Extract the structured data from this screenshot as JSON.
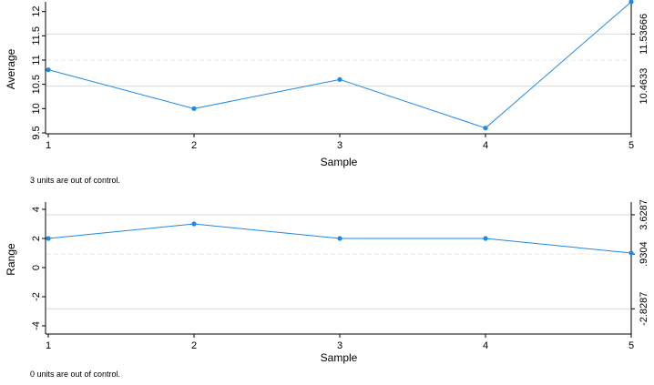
{
  "chart_data": [
    {
      "type": "line",
      "ylabel": "Average",
      "xlabel": "Sample",
      "x": [
        1,
        2,
        3,
        4,
        5
      ],
      "values": [
        10.8,
        10.0,
        10.6,
        9.6,
        12.2
      ],
      "xlim": [
        1,
        5
      ],
      "ylim": [
        9.5,
        12.2
      ],
      "yticks": [
        "9.5",
        "10",
        "10.5",
        "11",
        "11.5",
        "12"
      ],
      "ytick_values": [
        9.5,
        10,
        10.5,
        11,
        11.5,
        12
      ],
      "xticks": [
        "1",
        "2",
        "3",
        "4",
        "5"
      ],
      "control_limits": [
        {
          "label": "10.4633",
          "value": 10.4633
        },
        {
          "label": "11.53666",
          "value": 11.53666
        }
      ],
      "center_line": 11.0,
      "note": "3 units are out of control.",
      "colors": {
        "line": "#1e88e5",
        "limit_line": "#d9d9d9"
      }
    },
    {
      "type": "line",
      "ylabel": "Range",
      "xlabel": "Sample",
      "x": [
        1,
        2,
        3,
        4,
        5
      ],
      "values": [
        2,
        3,
        2,
        2,
        1
      ],
      "xlim": [
        1,
        5
      ],
      "ylim": [
        -4.5,
        4.5
      ],
      "yticks": [
        "-4",
        "-2",
        "0",
        "2",
        "4"
      ],
      "ytick_values": [
        -4,
        -2,
        0,
        2,
        4
      ],
      "xticks": [
        "1",
        "2",
        "3",
        "4",
        "5"
      ],
      "control_limits": [
        {
          "label": "-2.8287",
          "value": -2.8287
        },
        {
          "label": "3.6287",
          "value": 3.6287
        }
      ],
      "center_line_label": ".9304",
      "center_line": 0.9304,
      "note": "0 units are out of control.",
      "colors": {
        "line": "#1e88e5",
        "limit_line": "#d9d9d9"
      }
    }
  ]
}
